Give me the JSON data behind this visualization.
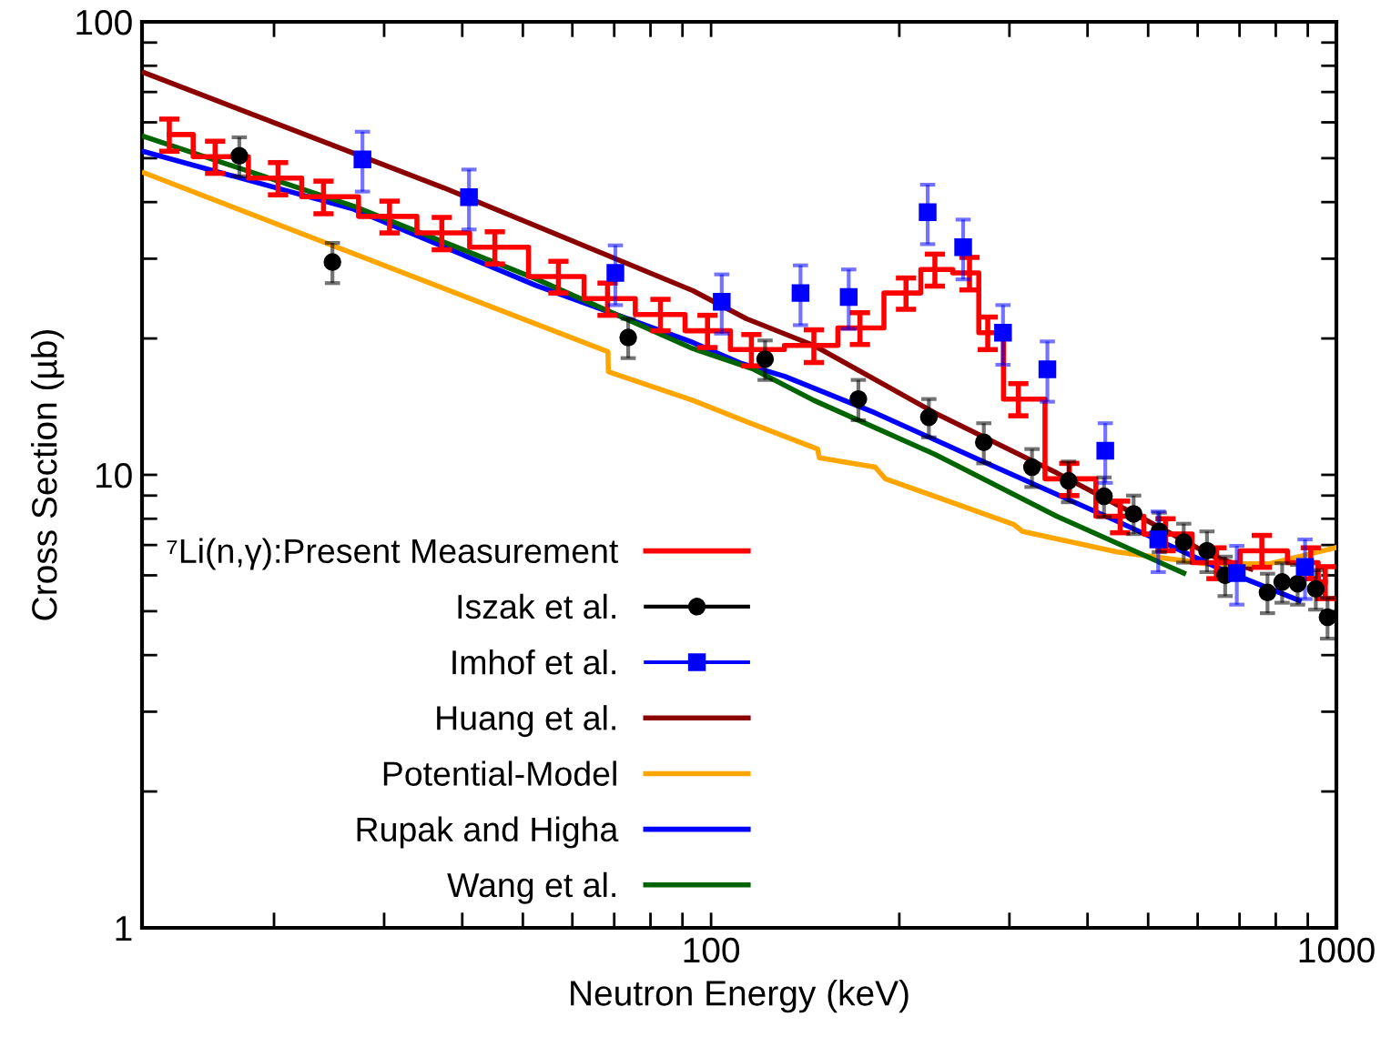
{
  "chart_data": {
    "type": "line",
    "xlabel": "Neutron Energy (keV)",
    "ylabel": "Cross Section (µb)",
    "log": "xy",
    "xlim": [
      12.3,
      1000
    ],
    "ylim": [
      1,
      100
    ],
    "xticks": [
      {
        "value": 20,
        "label": null
      },
      {
        "value": 30,
        "label": null
      },
      {
        "value": 40,
        "label": null
      },
      {
        "value": 50,
        "label": null
      },
      {
        "value": 60,
        "label": null
      },
      {
        "value": 70,
        "label": null
      },
      {
        "value": 80,
        "label": null
      },
      {
        "value": 90,
        "label": null
      },
      100,
      {
        "value": 200,
        "label": null
      },
      {
        "value": 300,
        "label": null
      },
      {
        "value": 400,
        "label": null
      },
      {
        "value": 500,
        "label": null
      },
      {
        "value": 600,
        "label": null
      },
      {
        "value": 700,
        "label": null
      },
      {
        "value": 800,
        "label": null
      },
      {
        "value": 900,
        "label": null
      },
      1000
    ],
    "yticks": [
      1,
      {
        "value": 2,
        "label": null
      },
      {
        "value": 3,
        "label": null
      },
      {
        "value": 4,
        "label": null
      },
      {
        "value": 5,
        "label": null
      },
      {
        "value": 6,
        "label": null
      },
      {
        "value": 7,
        "label": null
      },
      {
        "value": 8,
        "label": null
      },
      {
        "value": 9,
        "label": null
      },
      10,
      {
        "value": 20,
        "label": null
      },
      {
        "value": 30,
        "label": null
      },
      {
        "value": 40,
        "label": null
      },
      {
        "value": 50,
        "label": null
      },
      {
        "value": 60,
        "label": null
      },
      {
        "value": 70,
        "label": null
      },
      {
        "value": 80,
        "label": null
      },
      {
        "value": 90,
        "label": null
      },
      100
    ],
    "grid": false,
    "legend": "bottom left",
    "series": [
      {
        "name": "⁷Li(n,γ):Present Measurement",
        "type": "step",
        "color": "#ff0000",
        "x": [
          13.6,
          16.1,
          20.3,
          24.0,
          30.6,
          37.1,
          45.1,
          57.0,
          68.3,
          83.0,
          98.7,
          116,
          146,
          173,
          205,
          228,
          259,
          277,
          310,
          374,
          451,
          533,
          643,
          760,
          910,
          960
        ],
        "values": [
          56.4,
          50.4,
          45.2,
          41.1,
          37.2,
          34.2,
          31.8,
          27.4,
          24.5,
          22.6,
          20.8,
          18.9,
          19.3,
          21.1,
          25.2,
          28.4,
          27.9,
          20.6,
          14.7,
          9.8,
          8.1,
          7.4,
          6.4,
          6.8,
          6.4,
          5.8
        ],
        "errors": [
          4.6,
          4.1,
          3.7,
          3.4,
          3.0,
          2.8,
          2.6,
          2.2,
          2.0,
          1.8,
          1.7,
          1.5,
          1.6,
          1.7,
          2.0,
          2.3,
          2.3,
          1.7,
          1.2,
          0.8,
          0.65,
          0.6,
          0.5,
          0.55,
          0.5,
          0.47
        ]
      },
      {
        "name": "Iszak et al.",
        "type": "scatter",
        "marker": "circle",
        "color": "#000000",
        "x": [
          17.6,
          24.8,
          73.7,
          122,
          172,
          223,
          273,
          326,
          373,
          425,
          474,
          521,
          570,
          621,
          664,
          776,
          819,
          867,
          927,
          968
        ],
        "values": [
          50.6,
          29.5,
          20.1,
          18.0,
          14.7,
          13.4,
          11.8,
          10.4,
          9.7,
          8.97,
          8.2,
          7.5,
          7.1,
          6.8,
          6.0,
          5.5,
          5.8,
          5.75,
          5.6,
          4.85
        ],
        "errors": [
          5,
          3,
          2,
          1.8,
          1.5,
          1.3,
          1.2,
          1.0,
          1.0,
          0.9,
          0.8,
          0.75,
          0.7,
          0.7,
          0.6,
          0.55,
          0.58,
          0.58,
          0.56,
          0.5
        ]
      },
      {
        "name": "Imhof et al.",
        "type": "scatter",
        "marker": "square",
        "color": "#0000ff",
        "x": [
          27.7,
          41.0,
          70.3,
          104,
          139,
          166,
          222,
          253,
          293,
          345,
          427,
          519,
          693,
          891
        ],
        "values": [
          49.7,
          41.0,
          27.9,
          24.1,
          25.2,
          24.7,
          38.0,
          31.8,
          20.6,
          17.1,
          11.3,
          7.2,
          6.07,
          6.26
        ],
        "errors": [
          7.5,
          6.2,
          4.2,
          3.6,
          3.8,
          3.7,
          5.7,
          4.8,
          3.1,
          2.6,
          1.7,
          1.1,
          0.9,
          0.94
        ]
      },
      {
        "name": "Huang et al.",
        "color": "#8b0000",
        "x": [
          12.4,
          37.4,
          93.5,
          114,
          146,
          228,
          357,
          500,
          636,
          730
        ],
        "values": [
          77.2,
          43.0,
          25.5,
          22.1,
          19.3,
          13.7,
          10.1,
          7.9,
          6.6,
          6.2
        ]
      },
      {
        "name": "Potential-Model",
        "color": "#ffa500",
        "x": [
          12.4,
          68.4,
          68.5,
          93.5,
          114,
          148,
          149,
          183,
          190,
          305,
          315,
          446,
          623,
          780,
          995
        ],
        "values": [
          46.4,
          18.7,
          16.9,
          14.6,
          13.1,
          11.4,
          10.9,
          10.4,
          9.8,
          7.77,
          7.5,
          6.76,
          6.36,
          6.36,
          6.9
        ]
      },
      {
        "name": "Rupak and Higha",
        "color": "#0000ff",
        "x": [
          12.4,
          26.8,
          52.4,
          93.5,
          112,
          131,
          183,
          285,
          446,
          652,
          872
        ],
        "values": [
          51.7,
          38.6,
          26.2,
          19.6,
          17.6,
          16.5,
          13.7,
          10.4,
          7.9,
          6.2,
          5.28
        ]
      },
      {
        "name": "Wang et al.",
        "color": "#006400",
        "x": [
          12.4,
          26.8,
          52.4,
          93.5,
          117,
          146,
          228,
          357,
          570
        ],
        "values": [
          55.8,
          39.2,
          27.1,
          19.0,
          17.1,
          14.6,
          11.1,
          8.1,
          6.07
        ]
      }
    ]
  }
}
